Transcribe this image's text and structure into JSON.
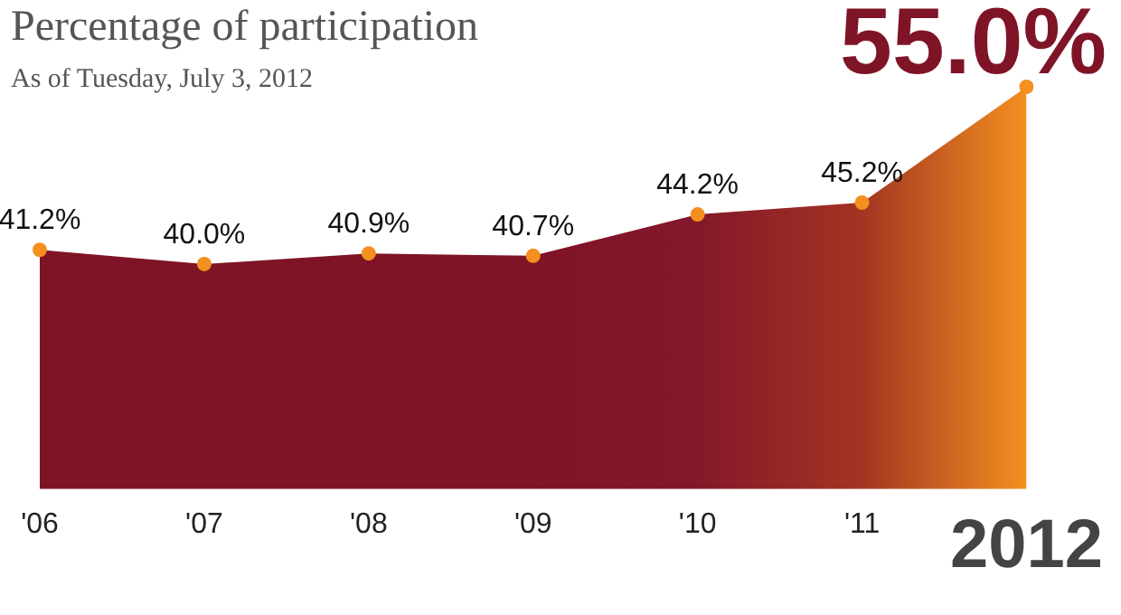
{
  "chart_data": {
    "type": "area",
    "title": "Percentage of participation",
    "subtitle": "As of Tuesday, July 3, 2012",
    "categories": [
      "'06",
      "'07",
      "'08",
      "'09",
      "'10",
      "'11",
      "2012"
    ],
    "series": [
      {
        "color": "#7f1426",
        "colors": [
          "#7f1426",
          "#7f1426",
          "#7f1426",
          "#7f1426",
          "#84182a",
          "#a33422",
          "#f39020"
        ],
        "values": [
          41.2,
          40.0,
          40.9,
          40.7,
          44.2,
          45.2,
          55.0
        ],
        "value_labels": [
          "41.2%",
          "40.0%",
          "40.9%",
          "40.7%",
          "44.2%",
          "45.2%",
          "55.0%"
        ]
      }
    ],
    "grid": false,
    "legend": false,
    "marker": "circle"
  }
}
